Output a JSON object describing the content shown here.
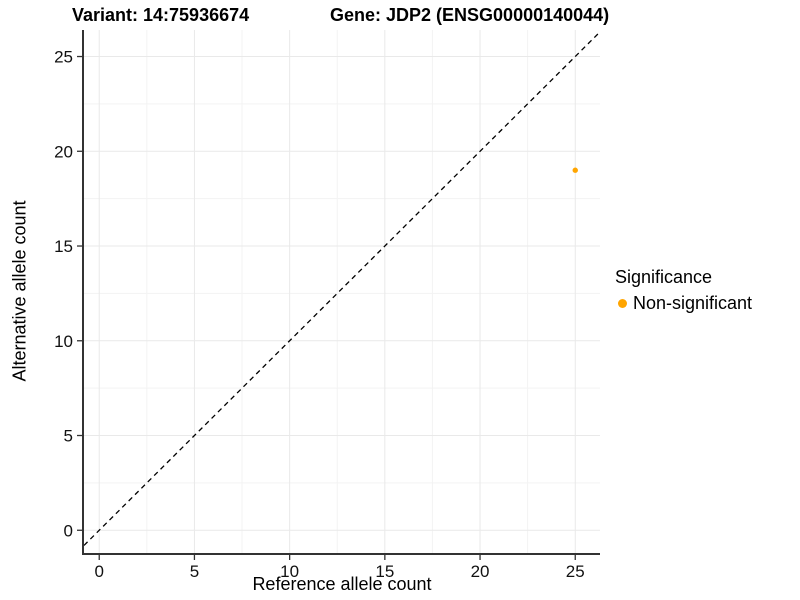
{
  "chart_data": {
    "type": "scatter",
    "titles": {
      "variant": "Variant: 14:75936674",
      "gene": "Gene: JDP2 (ENSG00000140044)"
    },
    "xlabel": "Reference allele count",
    "ylabel": "Alternative allele count",
    "series": [
      {
        "name": "Non-significant",
        "color": "#FFA500",
        "points": [
          {
            "x": 25,
            "y": 19
          }
        ]
      }
    ],
    "x_ticks": [
      0,
      5,
      10,
      15,
      20,
      25
    ],
    "y_ticks": [
      0,
      5,
      10,
      15,
      20,
      25
    ],
    "x_minor_ticks": [
      2.5,
      7.5,
      12.5,
      17.5,
      22.5
    ],
    "y_minor_ticks": [
      2.5,
      7.5,
      12.5,
      17.5,
      22.5
    ],
    "xlim": [
      -0.8,
      26.3
    ],
    "ylim": [
      -1.2,
      26.4
    ],
    "identity_line": {
      "slope": 1,
      "intercept": 0,
      "style": "dashed",
      "color": "#000000"
    },
    "grid": true,
    "legend": {
      "title": "Significance",
      "position": "right",
      "items": [
        {
          "label": "Non-significant",
          "color": "#FFA500"
        }
      ]
    }
  }
}
